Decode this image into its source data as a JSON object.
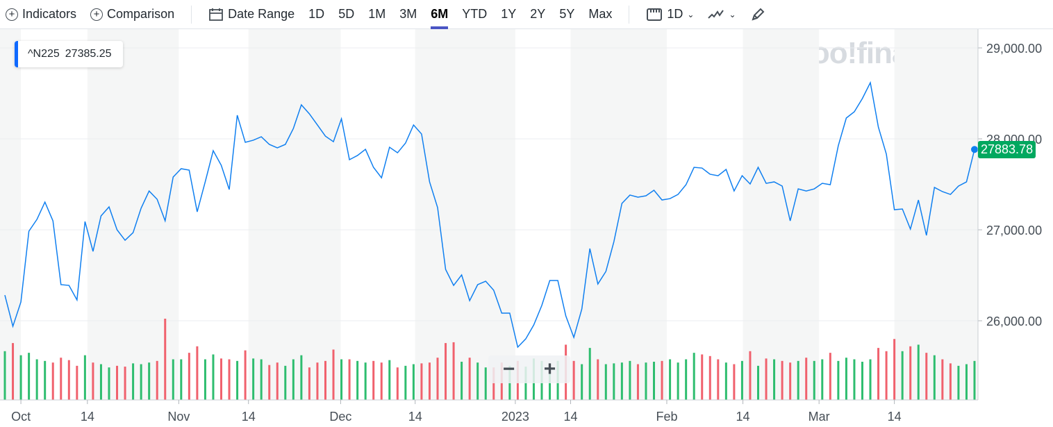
{
  "toolbar": {
    "indicators": "Indicators",
    "comparison": "Comparison",
    "date_range": "Date Range",
    "ranges": [
      "1D",
      "5D",
      "1M",
      "3M",
      "6M",
      "YTD",
      "1Y",
      "2Y",
      "5Y",
      "Max"
    ],
    "selected_range": "6M",
    "interval": "1D",
    "icons": [
      "plus-circle-icon",
      "calendar-icon",
      "candle-ruler-icon",
      "line-chart-icon",
      "chevron-down-icon",
      "pencil-icon"
    ]
  },
  "legend": {
    "symbol": "^N225",
    "value": "27385.25",
    "color": "#0f69ff"
  },
  "watermark": "yahoo!finance",
  "zoom": {
    "minus": "−",
    "plus": "+"
  },
  "last_price": "27883.78",
  "colors": {
    "line": "#0f7ff0",
    "up": "#2ebd6f",
    "down": "#f0616d",
    "last_label": "#00a85f",
    "shade": "#f5f6f6"
  },
  "chart_data": {
    "type": "line",
    "title": "",
    "ylim": [
      25470,
      29210
    ],
    "y_ticks": [
      "26,000.00",
      "27,000.00",
      "28,000.00",
      "29,000.00"
    ],
    "y_tick_values": [
      26000,
      27000,
      28000,
      29000
    ],
    "x_ticks": [
      {
        "label": "Oct",
        "index": 2
      },
      {
        "label": "14",
        "index": 10.3
      },
      {
        "label": "Nov",
        "index": 21.7
      },
      {
        "label": "14",
        "index": 30.4
      },
      {
        "label": "Dec",
        "index": 41.9
      },
      {
        "label": "14",
        "index": 51.2
      },
      {
        "label": "2023",
        "index": 63.7
      },
      {
        "label": "14",
        "index": 70.6
      },
      {
        "label": "Feb",
        "index": 82.6
      },
      {
        "label": "14",
        "index": 92.1
      },
      {
        "label": "Mar",
        "index": 101.6
      },
      {
        "label": "14",
        "index": 111
      }
    ],
    "grid": true,
    "series": [
      {
        "values": [
          26282,
          25939,
          26206,
          26985,
          27114,
          27305,
          27099,
          26397,
          26389,
          26229,
          27091,
          26763,
          27153,
          27252,
          27000,
          26885,
          26969,
          27237,
          27427,
          27336,
          27099,
          27580,
          27672,
          27656,
          27198,
          27527,
          27870,
          27710,
          27443,
          28260,
          27962,
          27985,
          28023,
          27939,
          27901,
          27939,
          28114,
          28374,
          28275,
          28153,
          28030,
          27969,
          28221,
          27771,
          27817,
          27885,
          27687,
          27572,
          27908,
          27847,
          27954,
          28153,
          28053,
          27527,
          27244,
          26565,
          26389,
          26504,
          26221,
          26397,
          26435,
          26336,
          26084,
          26084,
          25710,
          25801,
          25954,
          26168,
          26443,
          26443,
          26053,
          25817,
          26130,
          26794,
          26404,
          26542,
          26870,
          27290,
          27382,
          27359,
          27374,
          27435,
          27328,
          27343,
          27389,
          27496,
          27687,
          27679,
          27611,
          27595,
          27664,
          27427,
          27595,
          27504,
          27687,
          27511,
          27527,
          27481,
          27099,
          27450,
          27427,
          27450,
          27511,
          27496,
          27924,
          28229,
          28298,
          28443,
          28618,
          28130,
          27832,
          27221,
          27229,
          27008,
          27328,
          26939,
          27466,
          27420,
          27389,
          27481,
          27527,
          27883.78
        ]
      }
    ],
    "volume_relative": [
      60,
      70,
      55,
      58,
      50,
      48,
      46,
      52,
      49,
      42,
      55,
      46,
      44,
      40,
      42,
      41,
      45,
      44,
      46,
      48,
      100,
      50,
      50,
      58,
      66,
      50,
      56,
      51,
      50,
      48,
      61,
      51,
      50,
      43,
      46,
      42,
      50,
      55,
      40,
      46,
      48,
      62,
      50,
      50,
      48,
      46,
      48,
      46,
      49,
      40,
      42,
      44,
      45,
      46,
      52,
      70,
      71,
      47,
      52,
      46,
      40,
      40,
      46,
      42,
      48,
      41,
      51,
      48,
      44,
      48,
      68,
      48,
      44,
      64,
      50,
      44,
      45,
      46,
      48,
      44,
      46,
      47,
      48,
      50,
      46,
      50,
      58,
      56,
      54,
      50,
      46,
      44,
      48,
      60,
      42,
      51,
      50,
      48,
      46,
      48,
      52,
      48,
      50,
      58,
      48,
      52,
      50,
      47,
      50,
      64,
      60,
      75,
      60,
      66,
      68,
      58,
      55,
      50,
      45,
      42,
      44,
      48
    ]
  }
}
